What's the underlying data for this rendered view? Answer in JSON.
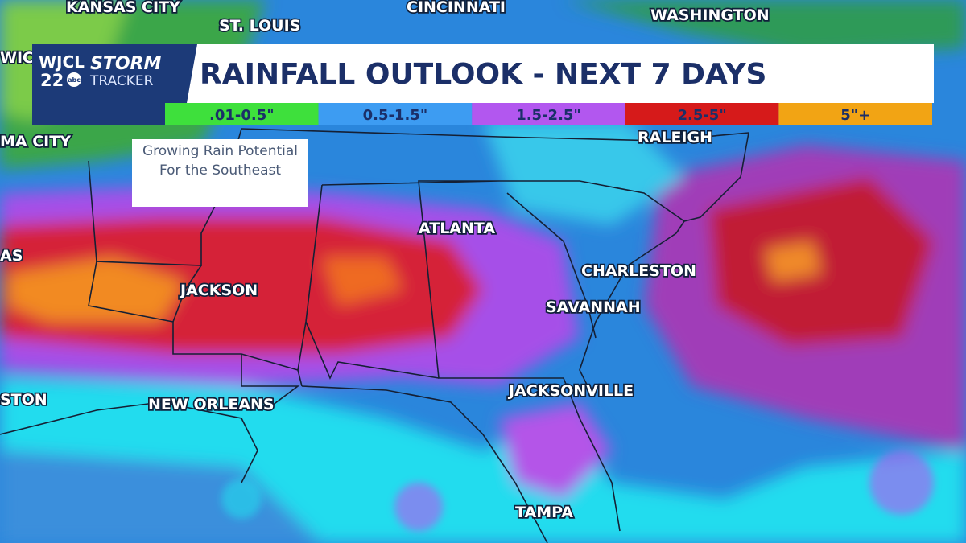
{
  "logo": {
    "station": "WJCL",
    "channel": "22",
    "network": "abc",
    "brand_top": "STORM",
    "brand_bottom": "TRACKER"
  },
  "header": {
    "title": "RAINFALL OUTLOOK - NEXT 7 DAYS"
  },
  "legend": {
    "items": [
      {
        "label": ".01-0.5\"",
        "color": "#3ee03c"
      },
      {
        "label": "0.5-1.5\"",
        "color": "#3d9cf2"
      },
      {
        "label": "1.5-2.5\"",
        "color": "#b257ef"
      },
      {
        "label": "2.5-5\"",
        "color": "#d61a1a"
      },
      {
        "label": "5\"+",
        "color": "#f2a414"
      }
    ]
  },
  "note": {
    "text": "Growing Rain Potential For the Southeast"
  },
  "cities": [
    "KANSAS CITY",
    "ST. LOUIS",
    "CINCINNATI",
    "WASHINGTON",
    "WICH",
    "MA CITY",
    "RALEIGH",
    "AS",
    "ATLANTA",
    "CHARLESTON",
    "JACKSON",
    "SAVANNAH",
    "STON",
    "NEW ORLEANS",
    "JACKSONVILLE",
    "TAMPA"
  ]
}
